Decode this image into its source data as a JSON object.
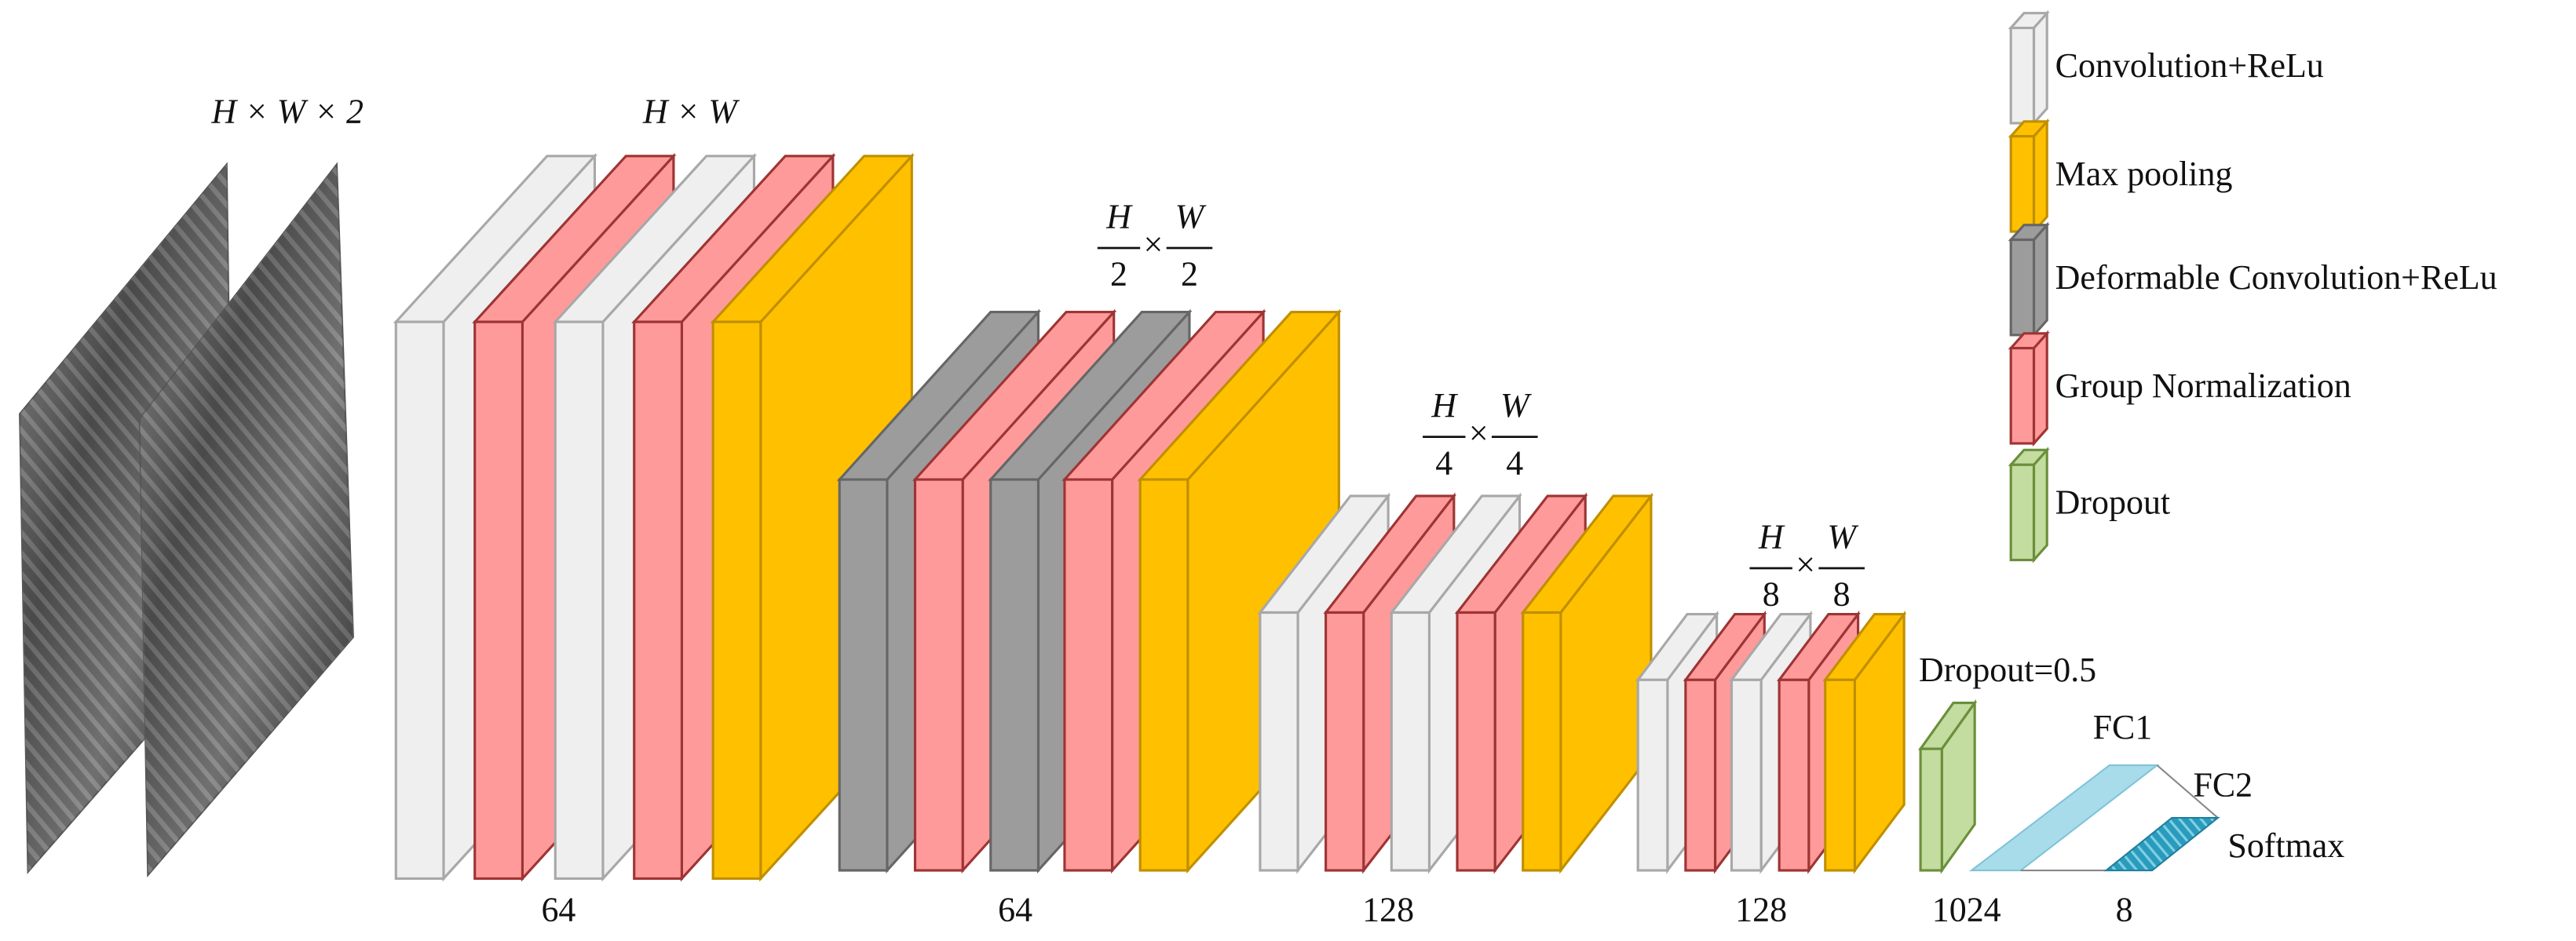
{
  "input": {
    "size": "H × W × 2"
  },
  "stages": [
    {
      "size": {
        "text": "H × W"
      },
      "channels": "64"
    },
    {
      "size": {
        "num1": "H",
        "den1": "2",
        "times": "×",
        "num2": "W",
        "den2": "2"
      },
      "channels": "64"
    },
    {
      "size": {
        "num1": "H",
        "den1": "4",
        "times": "×",
        "num2": "W",
        "den2": "4"
      },
      "channels": "128"
    },
    {
      "size": {
        "num1": "H",
        "den1": "8",
        "times": "×",
        "num2": "W",
        "den2": "8"
      },
      "channels": "128"
    }
  ],
  "dropout": {
    "label": "Dropout=0.5",
    "channels": "1024"
  },
  "fc": {
    "fc1": "FC1",
    "fc2": "FC2",
    "softmax": "Softmax",
    "channels": "8"
  },
  "legend": [
    "Convolution+ReLu",
    "Max pooling",
    "Deformable Convolution+ReLu",
    "Group Normalization",
    "Dropout"
  ]
}
